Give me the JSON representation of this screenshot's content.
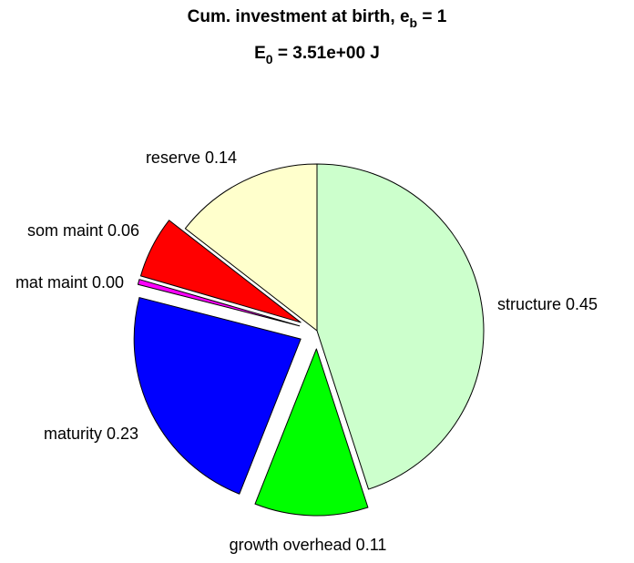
{
  "title": {
    "line1_prefix": "Cum. investment at birth, e",
    "line1_sub": "b",
    "line1_suffix": " = 1",
    "line2_prefix": "E",
    "line2_sub": "0",
    "line2_suffix": " = 3.51e+00 J"
  },
  "chart_data": {
    "type": "pie",
    "start_angle_deg": 90,
    "direction": "clockwise",
    "slices": [
      {
        "label": "structure",
        "value": 0.45,
        "value_text": "0.45",
        "color": "#ccffcc",
        "exploded": false
      },
      {
        "label": "growth overhead",
        "value": 0.11,
        "value_text": "0.11",
        "color": "#00ff00",
        "exploded": true
      },
      {
        "label": "maturity",
        "value": 0.23,
        "value_text": "0.23",
        "color": "#0000ff",
        "exploded": true
      },
      {
        "label": "mat maint",
        "value": 0.005,
        "value_text": "0.00",
        "color": "#ff00ff",
        "exploded": true
      },
      {
        "label": "som maint",
        "value": 0.06,
        "value_text": "0.06",
        "color": "#ff0000",
        "exploded": true
      },
      {
        "label": "reserve",
        "value": 0.145,
        "value_text": "0.14",
        "color": "#ffffcc",
        "exploded": false
      }
    ]
  }
}
